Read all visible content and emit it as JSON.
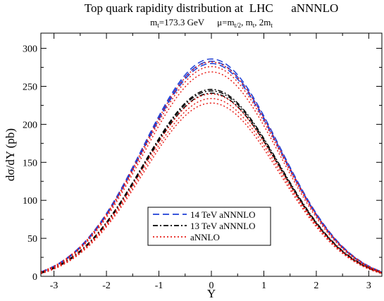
{
  "chart_data": {
    "type": "line",
    "title": "Top quark rapidity distribution at  LHC      aNNNLO",
    "subtitle": {
      "mass_prefix": "m",
      "mass_sub": "t",
      "mass_value": "=173.3 GeV",
      "mu_prefix": "μ=m",
      "mu_sub1": "t/2",
      "mu_mid": ", m",
      "mu_sub2": "t",
      "mu_tail": ", 2m",
      "mu_sub3": "t"
    },
    "xlabel": "Y",
    "ylabel": "dσ/dY (pb)",
    "xlim": [
      -3.25,
      3.25
    ],
    "ylim": [
      0,
      320
    ],
    "xticks": [
      -3,
      -2,
      -1,
      0,
      1,
      2,
      3
    ],
    "xtick_labels": [
      "-3",
      "-2",
      "-1",
      "0",
      "1",
      "2",
      "3"
    ],
    "yticks": [
      0,
      50,
      100,
      150,
      200,
      250,
      300
    ],
    "ytick_labels": [
      "0",
      "50",
      "100",
      "150",
      "200",
      "250",
      "300"
    ],
    "grid": false,
    "legend_position": "bottom-center",
    "shape_width": 1.3,
    "series": [
      {
        "name": "14 TeV aNNNLO",
        "group": "14 TeV aNNNLO",
        "color": "#1f3fd6",
        "dash": "9,5",
        "peak": 286,
        "edge": 6,
        "legend": true
      },
      {
        "group": "14 TeV aNNNLO",
        "color": "#1f3fd6",
        "dash": "9,5",
        "peak": 283,
        "edge": 5.5,
        "legend": false
      },
      {
        "group": "14 TeV aNNNLO",
        "color": "#1f3fd6",
        "dash": "9,5",
        "peak": 280,
        "edge": 5,
        "legend": false
      },
      {
        "name": "13 TeV aNNNLO",
        "group": "13 TeV aNNNLO",
        "color": "#000000",
        "dash": "7,3,2,3",
        "peak": 246,
        "edge": 5,
        "legend": true
      },
      {
        "group": "13 TeV aNNNLO",
        "color": "#000000",
        "dash": "7,3,2,3",
        "peak": 244,
        "edge": 4.5,
        "legend": false
      },
      {
        "group": "13 TeV aNNNLO",
        "color": "#000000",
        "dash": "7,3,2,3",
        "peak": 241,
        "edge": 4,
        "legend": false
      },
      {
        "name": "aNNLO",
        "group": "aNNLO",
        "color": "#e8201a",
        "dash": "2,3",
        "peak": 282,
        "edge": 6,
        "legend": true
      },
      {
        "group": "aNNLO",
        "color": "#e8201a",
        "dash": "2,3",
        "peak": 276,
        "edge": 5.5,
        "legend": false
      },
      {
        "group": "aNNLO",
        "color": "#e8201a",
        "dash": "2,3",
        "peak": 269,
        "edge": 5,
        "legend": false
      },
      {
        "group": "aNNLO",
        "color": "#e8201a",
        "dash": "2,3",
        "peak": 240,
        "edge": 4.5,
        "legend": false
      },
      {
        "group": "aNNLO",
        "color": "#e8201a",
        "dash": "2,3",
        "peak": 234,
        "edge": 4,
        "legend": false
      },
      {
        "group": "aNNLO",
        "color": "#e8201a",
        "dash": "2,3",
        "peak": 228,
        "edge": 3.5,
        "legend": false
      }
    ]
  }
}
